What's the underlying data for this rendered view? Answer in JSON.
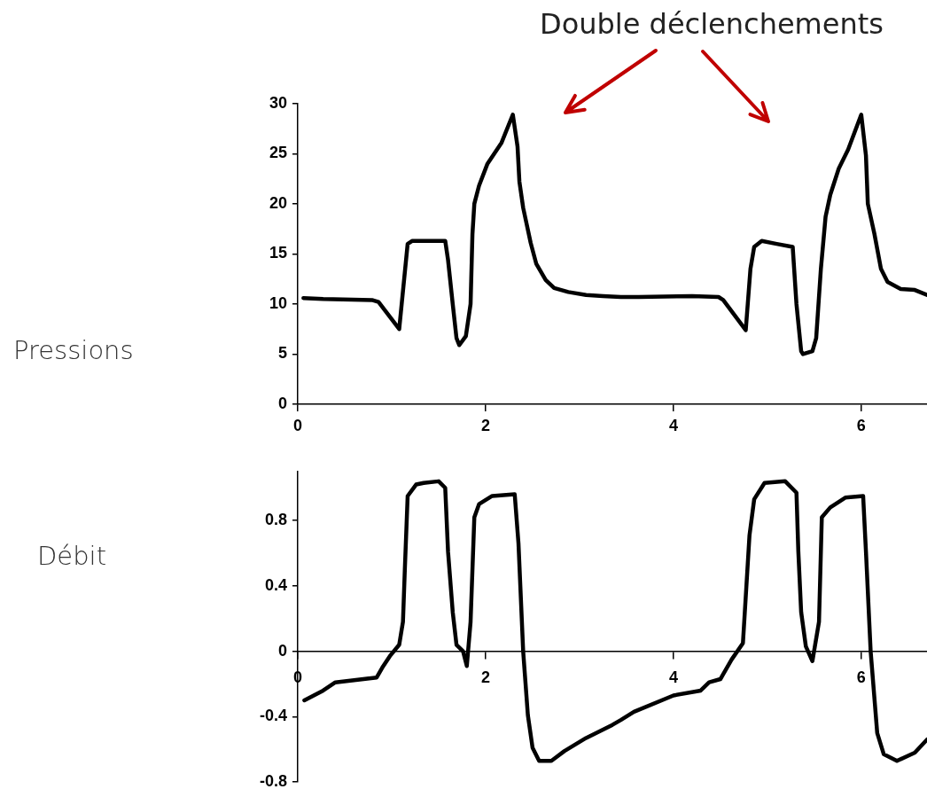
{
  "chart_data": [
    {
      "type": "line",
      "title": "Double déclenchements",
      "ylabel": "Pressions",
      "color": "#000000",
      "grid": false,
      "legend": false,
      "marker": "none",
      "line_style": "solid",
      "xlim": [
        0,
        6.7
      ],
      "xticks": [
        0,
        2,
        4,
        6
      ],
      "ylim": [
        0,
        30
      ],
      "yticks": [
        0,
        5,
        10,
        15,
        20,
        25,
        30
      ],
      "x": [
        0.06,
        0.27,
        0.79,
        0.86,
        1.08,
        1.17,
        1.22,
        1.57,
        1.6,
        1.65,
        1.69,
        1.72,
        1.79,
        1.84,
        1.86,
        1.88,
        1.93,
        2.02,
        2.17,
        2.29,
        2.34,
        2.36,
        2.4,
        2.48,
        2.54,
        2.64,
        2.73,
        2.88,
        3.07,
        3.25,
        3.44,
        3.63,
        4.2,
        4.48,
        4.53,
        4.77,
        4.82,
        4.86,
        4.94,
        5.1,
        5.27,
        5.31,
        5.36,
        5.38,
        5.48,
        5.52,
        5.57,
        5.62,
        5.67,
        5.76,
        5.86,
        6.0,
        6.05,
        6.07,
        6.14,
        6.21,
        6.28,
        6.42,
        6.57,
        6.7
      ],
      "values": [
        10.6,
        10.5,
        10.4,
        10.2,
        7.5,
        16,
        16.3,
        16.3,
        14.4,
        10,
        6.6,
        5.9,
        6.8,
        10,
        17,
        20,
        21.8,
        24,
        26.1,
        28.9,
        25.7,
        22.2,
        19.6,
        16.1,
        14,
        12.4,
        11.6,
        11.2,
        10.9,
        10.8,
        10.7,
        10.7,
        10.8,
        10.7,
        10.4,
        7.4,
        13.5,
        15.7,
        16.3,
        16,
        15.7,
        10,
        5.3,
        5.0,
        5.3,
        6.6,
        13.5,
        18.7,
        20.9,
        23.5,
        25.4,
        28.9,
        24.8,
        20,
        17,
        13.5,
        12.2,
        11.5,
        11.4,
        10.9
      ]
    },
    {
      "type": "line",
      "ylabel": "Débit",
      "color": "#000000",
      "grid": false,
      "legend": false,
      "marker": "none",
      "line_style": "solid",
      "xlim": [
        0,
        6.7
      ],
      "xticks": [
        0,
        2,
        4,
        6
      ],
      "ylim": [
        -0.8,
        1.1
      ],
      "yticks": [
        -0.8,
        -0.4,
        0,
        0.4,
        0.8
      ],
      "x": [
        0.07,
        0.27,
        0.4,
        0.56,
        0.84,
        0.9,
        0.98,
        1.08,
        1.12,
        1.14,
        1.17,
        1.26,
        1.34,
        1.5,
        1.57,
        1.6,
        1.65,
        1.69,
        1.76,
        1.8,
        1.84,
        1.88,
        1.93,
        2.07,
        2.31,
        2.35,
        2.4,
        2.45,
        2.5,
        2.57,
        2.7,
        2.84,
        3.07,
        3.35,
        3.44,
        3.58,
        4.0,
        4.29,
        4.38,
        4.5,
        4.62,
        4.74,
        4.81,
        4.86,
        4.97,
        5.19,
        5.31,
        5.33,
        5.36,
        5.41,
        5.48,
        5.55,
        5.58,
        5.67,
        5.83,
        6.02,
        6.05,
        6.1,
        6.17,
        6.24,
        6.38,
        6.57,
        6.7
      ],
      "values": [
        -0.3,
        -0.24,
        -0.19,
        -0.18,
        -0.16,
        -0.1,
        -0.03,
        0.04,
        0.18,
        0.5,
        0.95,
        1.02,
        1.03,
        1.04,
        1.0,
        0.61,
        0.24,
        0.04,
        0,
        -0.09,
        0.18,
        0.82,
        0.9,
        0.95,
        0.96,
        0.66,
        0,
        -0.39,
        -0.59,
        -0.67,
        -0.67,
        -0.61,
        -0.53,
        -0.45,
        -0.42,
        -0.37,
        -0.27,
        -0.24,
        -0.19,
        -0.17,
        -0.05,
        0.05,
        0.71,
        0.93,
        1.03,
        1.04,
        0.97,
        0.61,
        0.24,
        0.03,
        -0.06,
        0.18,
        0.82,
        0.88,
        0.94,
        0.95,
        0.61,
        0,
        -0.5,
        -0.63,
        -0.67,
        -0.62,
        -0.54
      ]
    }
  ]
}
